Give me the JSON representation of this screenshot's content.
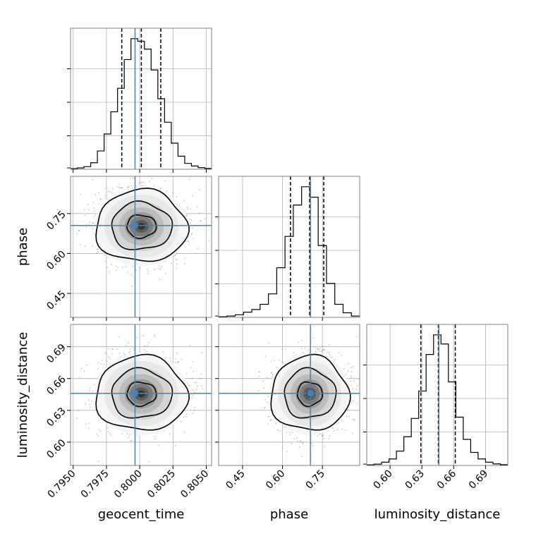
{
  "chart_data": {
    "type": "corner",
    "parameters": [
      {
        "name": "geocent_time",
        "label": "geocent_time",
        "truth": 0.79965,
        "range": [
          0.7948,
          0.8054
        ],
        "ticks": [
          0.795,
          0.7975,
          0.8,
          0.8025,
          0.805
        ],
        "tick_labels": [
          "0.7950",
          "0.7975",
          "0.8000",
          "0.8025",
          "0.8050"
        ],
        "quantiles": [
          0.79865,
          0.80012,
          0.80158
        ],
        "hist_edges": [
          0.7948,
          0.8054
        ],
        "hist": [
          0.005,
          0.01,
          0.02,
          0.05,
          0.14,
          0.27,
          0.44,
          0.62,
          0.84,
          1.0,
          0.98,
          0.92,
          0.76,
          0.54,
          0.36,
          0.2,
          0.1,
          0.045,
          0.025,
          0.012,
          0.006
        ]
      },
      {
        "name": "phase",
        "label": "phase",
        "truth": 0.705,
        "range": [
          0.36,
          0.89
        ],
        "ticks": [
          0.45,
          0.6,
          0.75
        ],
        "tick_labels": [
          "0.45",
          "0.60",
          "0.75"
        ],
        "quantiles": [
          0.63,
          0.702,
          0.755
        ],
        "hist_edges": [
          0.36,
          0.89
        ],
        "hist": [
          0.005,
          0.01,
          0.02,
          0.04,
          0.06,
          0.1,
          0.18,
          0.38,
          0.62,
          0.86,
          1.0,
          0.92,
          0.55,
          0.26,
          0.1,
          0.035,
          0.01
        ],
        "tick_labels_y": [
          "0.45",
          "0.60",
          "0.75"
        ]
      },
      {
        "name": "luminosity_distance",
        "label": "luminosity_distance",
        "truth": 0.646,
        "range": [
          0.578,
          0.711
        ],
        "ticks": [
          0.6,
          0.63,
          0.66,
          0.69
        ],
        "tick_labels": [
          "0.60",
          "0.63",
          "0.66",
          "0.69"
        ],
        "quantiles": [
          0.629,
          0.6455,
          0.6615
        ],
        "hist_edges": [
          0.578,
          0.711
        ],
        "hist": [
          0.005,
          0.01,
          0.025,
          0.05,
          0.11,
          0.22,
          0.36,
          0.57,
          0.85,
          1.0,
          0.93,
          0.64,
          0.37,
          0.2,
          0.1,
          0.05,
          0.025,
          0.012,
          0.006
        ]
      }
    ],
    "contour_levels": [
      0.39,
      0.86,
      0.99
    ],
    "covariance": {
      "geocent_time__phase": 0.0,
      "geocent_time__luminosity_distance": 0.0,
      "phase__luminosity_distance": 0.0
    },
    "truth_color": "#4682b4",
    "hist_color": "#000000",
    "grid": true
  }
}
